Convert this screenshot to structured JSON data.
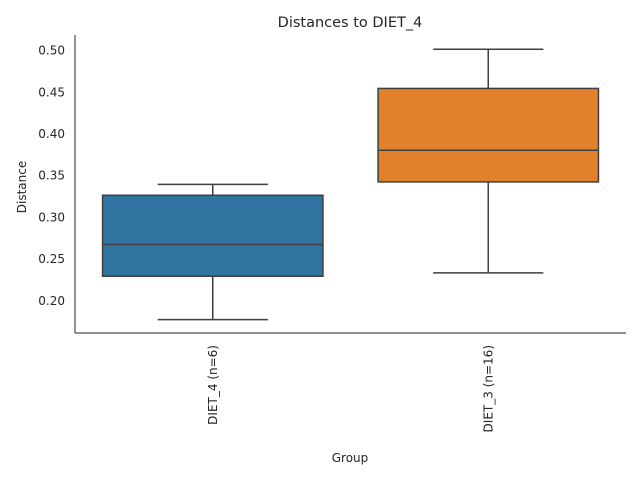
{
  "chart_data": {
    "type": "box",
    "title": "Distances to DIET_4",
    "xlabel": "Group",
    "ylabel": "Distance",
    "ylim": [
      0.161,
      0.518
    ],
    "yticks": [
      0.2,
      0.25,
      0.3,
      0.35,
      0.4,
      0.45,
      0.5
    ],
    "ytick_labels": [
      "0.20",
      "0.25",
      "0.30",
      "0.35",
      "0.40",
      "0.45",
      "0.50"
    ],
    "grid": false,
    "categories": [
      "DIET_4 (n=6)",
      "DIET_3 (n=16)"
    ],
    "boxes": [
      {
        "category": "DIET_4 (n=6)",
        "whisker_low": 0.177,
        "q1": 0.229,
        "median": 0.267,
        "q3": 0.326,
        "whisker_high": 0.339,
        "color": "#3274a1"
      },
      {
        "category": "DIET_3 (n=16)",
        "whisker_low": 0.233,
        "q1": 0.342,
        "median": 0.38,
        "q3": 0.454,
        "whisker_high": 0.501,
        "color": "#e1812c"
      }
    ]
  }
}
